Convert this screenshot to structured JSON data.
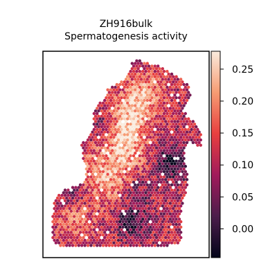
{
  "chart_data": {
    "type": "heatmap",
    "title": "ZH916bulk",
    "subtitle": "Spermatogenesis activity",
    "xlabel": "",
    "ylabel": "",
    "grid": false,
    "colormap": "rocket",
    "colorbar": {
      "min": -0.045,
      "max": 0.278,
      "ticks": [
        0.0,
        0.05,
        0.1,
        0.15,
        0.2,
        0.25
      ],
      "tick_labels": [
        "0.00",
        "0.05",
        "0.10",
        "0.15",
        "0.20",
        "0.25"
      ]
    },
    "hotspots": [
      {
        "x": 0.62,
        "y": 0.83,
        "value": 0.21
      },
      {
        "x": 0.52,
        "y": 0.7,
        "value": 0.22
      },
      {
        "x": 0.45,
        "y": 0.58,
        "value": 0.2
      },
      {
        "x": 0.4,
        "y": 0.33,
        "value": 0.19
      },
      {
        "x": 0.25,
        "y": 0.42,
        "value": 0.17
      },
      {
        "x": 0.5,
        "y": 0.48,
        "value": 0.18
      },
      {
        "x": 0.15,
        "y": 0.15,
        "value": 0.18
      }
    ],
    "coldspots": [
      {
        "x": 0.8,
        "y": 0.46,
        "value": -0.02
      },
      {
        "x": 0.54,
        "y": 0.14,
        "value": -0.01
      },
      {
        "x": 0.36,
        "y": 0.64,
        "value": 0.02
      },
      {
        "x": 0.55,
        "y": 0.31,
        "value": 0.03
      },
      {
        "x": 0.14,
        "y": 0.28,
        "value": 0.04
      }
    ],
    "baseline_value": 0.1
  },
  "colors": {
    "stops": [
      "#03051a",
      "#4c1d4b",
      "#a11a5b",
      "#e83f3f",
      "#f69c73",
      "#faebdd"
    ]
  }
}
